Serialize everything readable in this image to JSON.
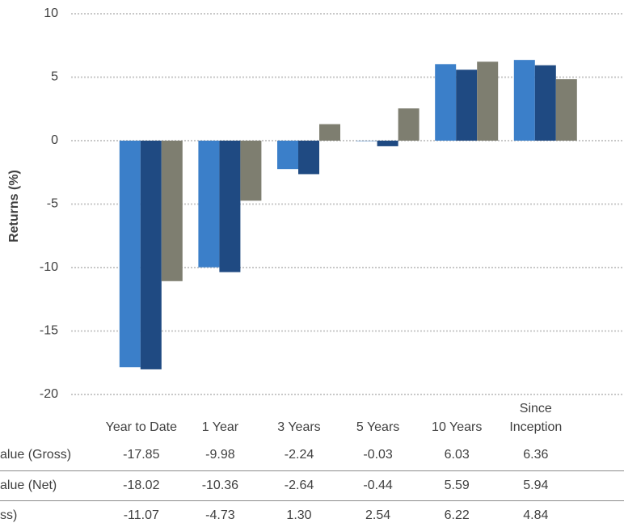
{
  "chart_data": {
    "type": "bar",
    "ylabel": "Returns (%)",
    "categories": [
      "Year to Date",
      "1 Year",
      "3 Years",
      "5 Years",
      "10 Years",
      "Since Inception"
    ],
    "series": [
      {
        "name": "alue (Gross)",
        "color": "#3b7fc9",
        "values": [
          -17.85,
          -9.98,
          -2.24,
          -0.03,
          6.03,
          6.36
        ]
      },
      {
        "name": "alue (Net)",
        "color": "#1f4a82",
        "values": [
          -18.02,
          -10.36,
          -2.64,
          -0.44,
          5.59,
          5.94
        ]
      },
      {
        "name": "ss)",
        "color": "#7e7e70",
        "values": [
          -11.07,
          -4.73,
          1.3,
          2.54,
          6.22,
          4.84
        ],
        "value_labels": [
          "-11.07",
          "-4.73",
          "1.30",
          "2.54",
          "6.22",
          "4.84"
        ]
      }
    ],
    "ylim": [
      -20,
      10
    ],
    "yticks": [
      -20,
      -15,
      -10,
      -5,
      0,
      5,
      10
    ],
    "grid": true
  }
}
